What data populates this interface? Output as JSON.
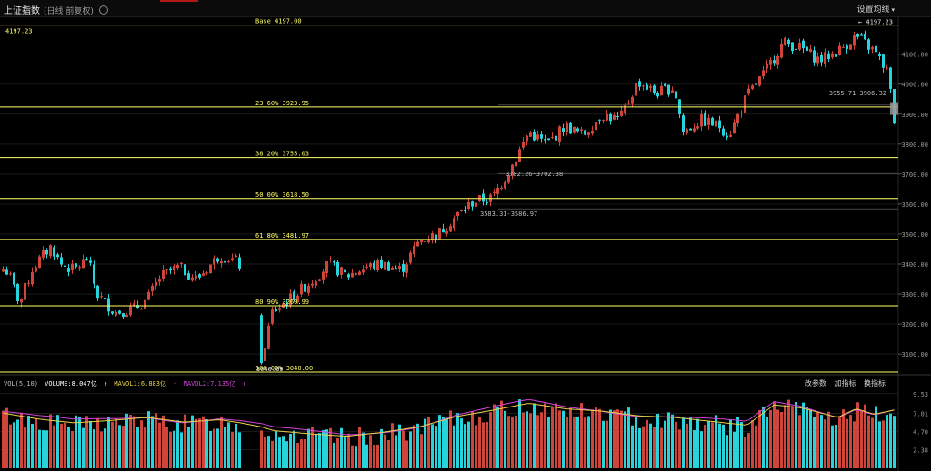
{
  "header": {
    "title": "上证指数",
    "subtitle": "(日线 前复权)",
    "settings_label": "设置均线",
    "settings_caret": "▾",
    "gear_icon": "gear-icon"
  },
  "colors": {
    "up": "#d0453a",
    "down": "#27d4dc",
    "fib": "#ffff66",
    "ma1": "#e8d34a",
    "ma2": "#d244d8",
    "grid": "#1a1a1a"
  },
  "chart_data": {
    "type": "candlestick",
    "title": "上证指数",
    "ylim": [
      3040,
      4220
    ],
    "y_ticks": [
      "4100.00",
      "4000.00",
      "3900.00",
      "3800.00",
      "3700.00",
      "3600.00",
      "3500.00",
      "3400.00",
      "3300.00",
      "3200.00",
      "3100.00"
    ],
    "y_tick_values": [
      4100,
      4000,
      3900,
      3800,
      3700,
      3600,
      3500,
      3400,
      3300,
      3200,
      3100
    ],
    "left_price_label": "4197.23",
    "high_marker": "← 4197.23",
    "fib_levels": [
      {
        "label": "Base  4197.00",
        "value": 4197.0
      },
      {
        "label": "23.60% 3923.95",
        "value": 3923.95
      },
      {
        "label": "38.20% 3755.03",
        "value": 3755.03
      },
      {
        "label": "50.00% 3618.50",
        "value": 3618.5
      },
      {
        "label": "61.80% 3481.97",
        "value": 3481.97
      },
      {
        "label": "80.90% 3260.99",
        "value": 3260.99
      },
      {
        "label": "100.00% 3040.00",
        "value": 3040.0
      }
    ],
    "low_marker": "3040.69",
    "gaps": [
      {
        "label": "3955.71-3906.32",
        "value": 3930
      },
      {
        "label": "3702.26-3702.38",
        "value": 3702
      },
      {
        "label": "3583.31-3586.97",
        "value": 3584
      }
    ],
    "candles_anchor_path": [
      [
        0,
        3390
      ],
      [
        8,
        3370
      ],
      [
        20,
        3270
      ],
      [
        35,
        3390
      ],
      [
        55,
        3460
      ],
      [
        65,
        3400
      ],
      [
        80,
        3380
      ],
      [
        95,
        3420
      ],
      [
        105,
        3300
      ],
      [
        125,
        3240
      ],
      [
        145,
        3250
      ],
      [
        160,
        3280
      ],
      [
        175,
        3360
      ],
      [
        195,
        3390
      ],
      [
        215,
        3350
      ],
      [
        240,
        3430
      ],
      [
        258,
        3410
      ],
      [
        282,
        3330
      ],
      [
        286,
        3080
      ],
      [
        298,
        3240
      ],
      [
        320,
        3290
      ],
      [
        340,
        3340
      ],
      [
        360,
        3400
      ],
      [
        380,
        3360
      ],
      [
        400,
        3390
      ],
      [
        420,
        3400
      ],
      [
        440,
        3380
      ],
      [
        460,
        3480
      ],
      [
        480,
        3500
      ],
      [
        500,
        3560
      ],
      [
        520,
        3610
      ],
      [
        540,
        3620
      ],
      [
        560,
        3720
      ],
      [
        580,
        3840
      ],
      [
        600,
        3800
      ],
      [
        620,
        3860
      ],
      [
        640,
        3830
      ],
      [
        660,
        3900
      ],
      [
        680,
        3880
      ],
      [
        700,
        4010
      ],
      [
        720,
        3970
      ],
      [
        740,
        3990
      ],
      [
        750,
        3840
      ],
      [
        770,
        3880
      ],
      [
        790,
        3860
      ],
      [
        800,
        3830
      ],
      [
        820,
        3960
      ],
      [
        840,
        4040
      ],
      [
        860,
        4140
      ],
      [
        880,
        4120
      ],
      [
        900,
        4080
      ],
      [
        920,
        4110
      ],
      [
        940,
        4160
      ],
      [
        960,
        4110
      ],
      [
        975,
        4040
      ],
      [
        985,
        3810
      ]
    ]
  },
  "volume": {
    "legend_title": "VOL(5,10)",
    "volume_text": "VOLUME:8.047亿",
    "ma1_text": "MAVOL1:6.883亿",
    "ma2_text": "MAVOL2:7.135亿",
    "arrow": "↑",
    "tools": [
      "改参数",
      "加指标",
      "换指标"
    ],
    "y_ticks": [
      "9.53",
      "7.01",
      "4.70",
      "2.38"
    ],
    "y_tick_values": [
      9.53,
      7.01,
      4.7,
      2.38
    ],
    "ylim": [
      0,
      10.2
    ],
    "bars_anchor_path": [
      [
        0,
        6.8
      ],
      [
        40,
        6.0
      ],
      [
        80,
        5.5
      ],
      [
        120,
        5.8
      ],
      [
        160,
        6.2
      ],
      [
        200,
        5.6
      ],
      [
        240,
        5.9
      ],
      [
        280,
        5.2
      ],
      [
        300,
        4.5
      ],
      [
        340,
        4.1
      ],
      [
        380,
        3.8
      ],
      [
        420,
        4.3
      ],
      [
        460,
        5.0
      ],
      [
        500,
        6.3
      ],
      [
        540,
        7.1
      ],
      [
        580,
        8.0
      ],
      [
        620,
        7.3
      ],
      [
        660,
        7.0
      ],
      [
        700,
        6.4
      ],
      [
        740,
        6.2
      ],
      [
        780,
        5.7
      ],
      [
        820,
        5.2
      ],
      [
        850,
        7.8
      ],
      [
        880,
        7.4
      ],
      [
        920,
        6.2
      ],
      [
        940,
        7.3
      ],
      [
        960,
        6.6
      ],
      [
        985,
        7.2
      ]
    ]
  }
}
